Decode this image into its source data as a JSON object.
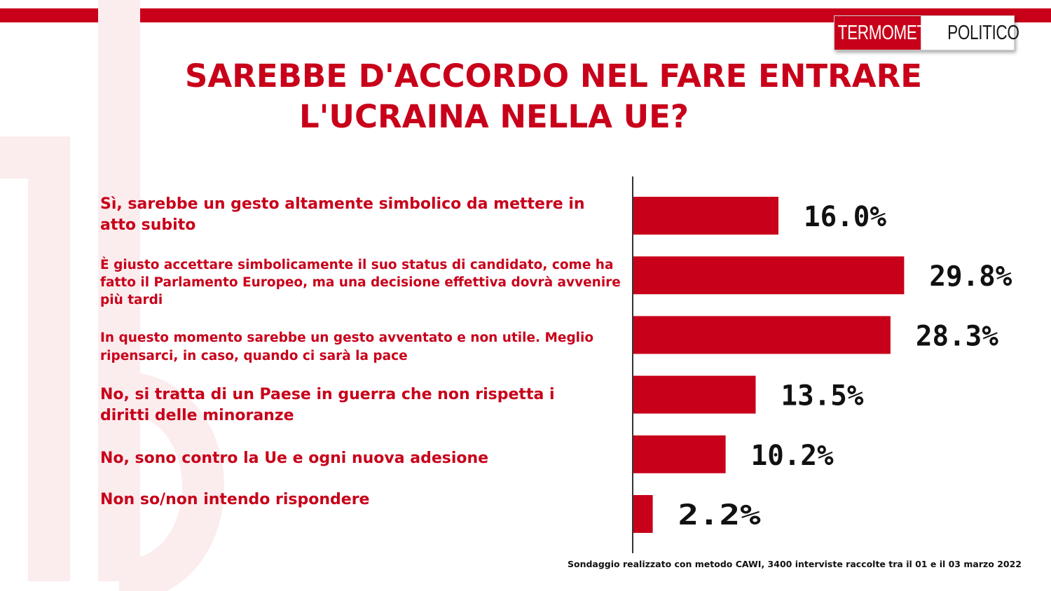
{
  "logo": {
    "part1": "TERMOMETRO",
    "part2": "POLITICO"
  },
  "title": {
    "line1": "SAREBBE D'ACCORDO NEL FARE ENTRARE",
    "line2": "L'UCRAINA NELLA UE?"
  },
  "footnote": "Sondaggio realizzato con metodo CAWI, 3400 interviste raccolte tra il 01 e il 03 marzo 2022",
  "colors": {
    "accent": "#c8001a",
    "bar": "#c8001a",
    "axis": "#333333"
  },
  "chart_data": {
    "type": "bar",
    "orientation": "horizontal",
    "categories": [
      "Sì, sarebbe un gesto altamente simbolico da mettere in atto subito",
      "È giusto accettare simbolicamente il suo status di candidato, come ha fatto il Parlamento Europeo, ma una decisione effettiva dovrà avvenire più tardi",
      "In questo momento sarebbe un gesto avventato e non utile. Meglio ripensarci, in caso, quando ci sarà  la pace",
      "No, si tratta di un Paese in guerra che non rispetta i diritti delle minoranze",
      "No, sono contro la Ue e ogni nuova adesione",
      "Non so/non intendo rispondere"
    ],
    "values": [
      16.0,
      29.8,
      28.3,
      13.5,
      10.2,
      2.2
    ],
    "data_labels": [
      "16.0%",
      "29.8%",
      "28.3%",
      "13.5%",
      "10.2%",
      "2.2%"
    ],
    "xlim": [
      0,
      30
    ],
    "grid": false,
    "legend": "none"
  }
}
